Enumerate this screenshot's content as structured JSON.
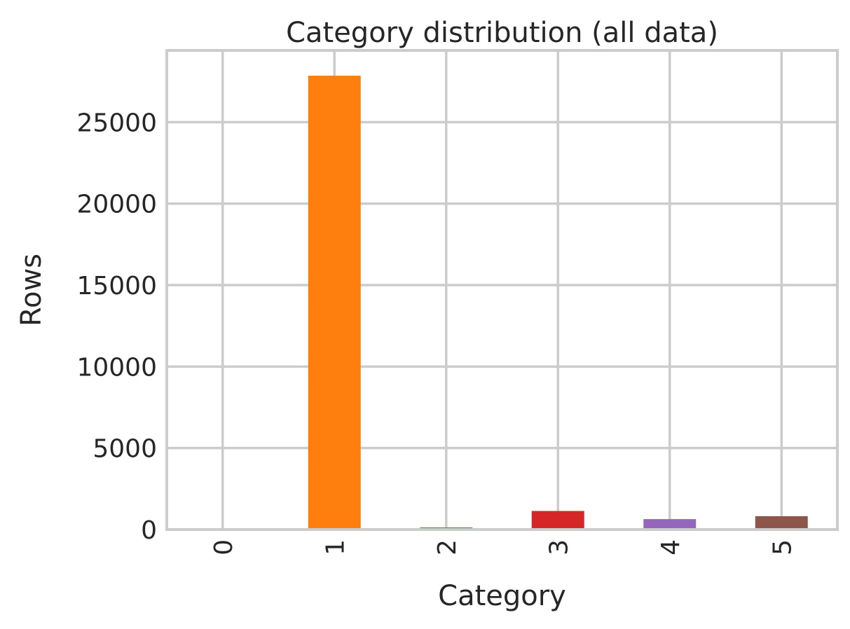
{
  "chart_data": {
    "type": "bar",
    "title": "Category distribution (all data)",
    "xlabel": "Category",
    "ylabel": "Rows",
    "categories": [
      "0",
      "1",
      "2",
      "3",
      "4",
      "5"
    ],
    "values": [
      10,
      27850,
      130,
      1140,
      640,
      820
    ],
    "colors": [
      "#1f77b4",
      "#ff7f0e",
      "#2ca02c",
      "#d62728",
      "#9467bd",
      "#8c564b"
    ],
    "ylim": [
      0,
      29400
    ],
    "yticks": [
      0,
      5000,
      10000,
      15000,
      20000,
      25000
    ],
    "ytick_labels": [
      "0",
      "5000",
      "10000",
      "15000",
      "20000",
      "25000"
    ],
    "xtick_rotation": "vertical",
    "grid": true,
    "legend": "none"
  }
}
